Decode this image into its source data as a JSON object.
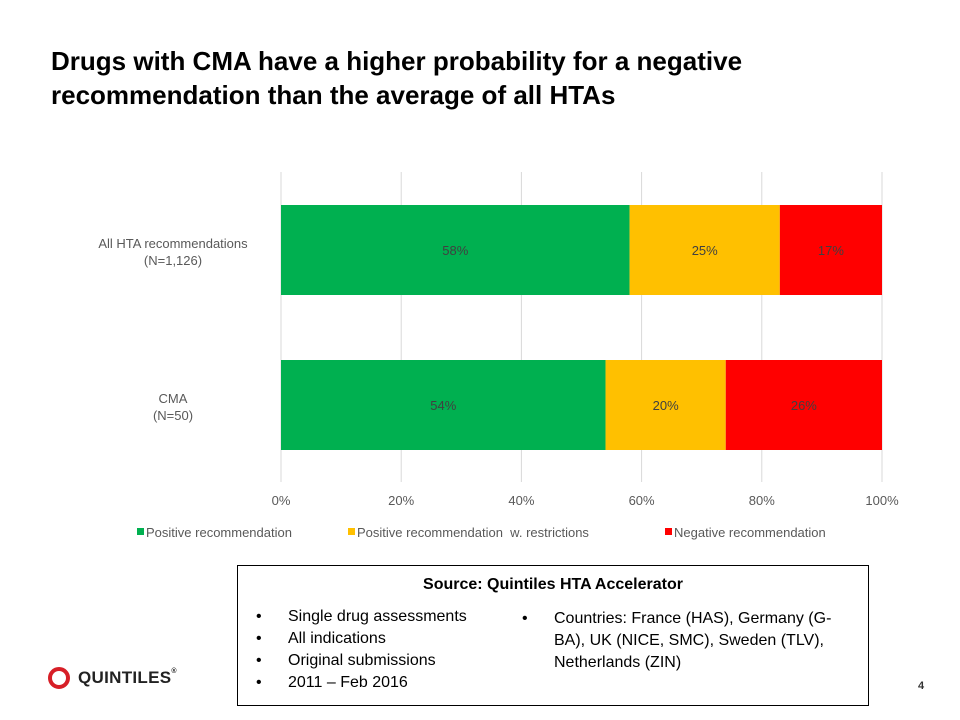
{
  "slide": {
    "title": "Drugs with CMA have a higher probability for a negative recommendation than the average of all HTAs",
    "page_number": "4"
  },
  "chart_data": {
    "type": "bar",
    "orientation": "horizontal",
    "stacked": true,
    "percent": true,
    "categories": [
      {
        "label": "All HTA recommendations",
        "sublabel": "(N=1,126)"
      },
      {
        "label": "CMA",
        "sublabel": "(N=50)"
      }
    ],
    "series": [
      {
        "name": "Positive recommendation",
        "color": "#00b050",
        "values": [
          58,
          54
        ]
      },
      {
        "name": "Positive recommendation  w. restrictions",
        "color": "#ffc000",
        "values": [
          25,
          20
        ]
      },
      {
        "name": "Negative recommendation",
        "color": "#ff0000",
        "values": [
          17,
          26
        ]
      }
    ],
    "data_labels": [
      [
        "58%",
        "25%",
        "17%"
      ],
      [
        "54%",
        "20%",
        "26%"
      ]
    ],
    "xlim": [
      0,
      100
    ],
    "x_ticks": [
      "0%",
      "20%",
      "40%",
      "60%",
      "80%",
      "100%"
    ],
    "x_tick_values": [
      0,
      20,
      40,
      60,
      80,
      100
    ],
    "grid": true,
    "legend_position": "bottom",
    "title": "",
    "xlabel": "",
    "ylabel": ""
  },
  "source": {
    "title": "Source: Quintiles HTA Accelerator",
    "left_bullets": [
      "Single drug assessments",
      "All indications",
      "Original submissions",
      "2011 – Feb 2016"
    ],
    "right_bullets": [
      "Countries: France (HAS), Germany (G-BA), UK (NICE, SMC), Sweden (TLV), Netherlands (ZIN)"
    ],
    "bullet_glyph": "•"
  },
  "logo": {
    "text": "QUINTILES",
    "tm": "®",
    "color": "#d71f27"
  }
}
